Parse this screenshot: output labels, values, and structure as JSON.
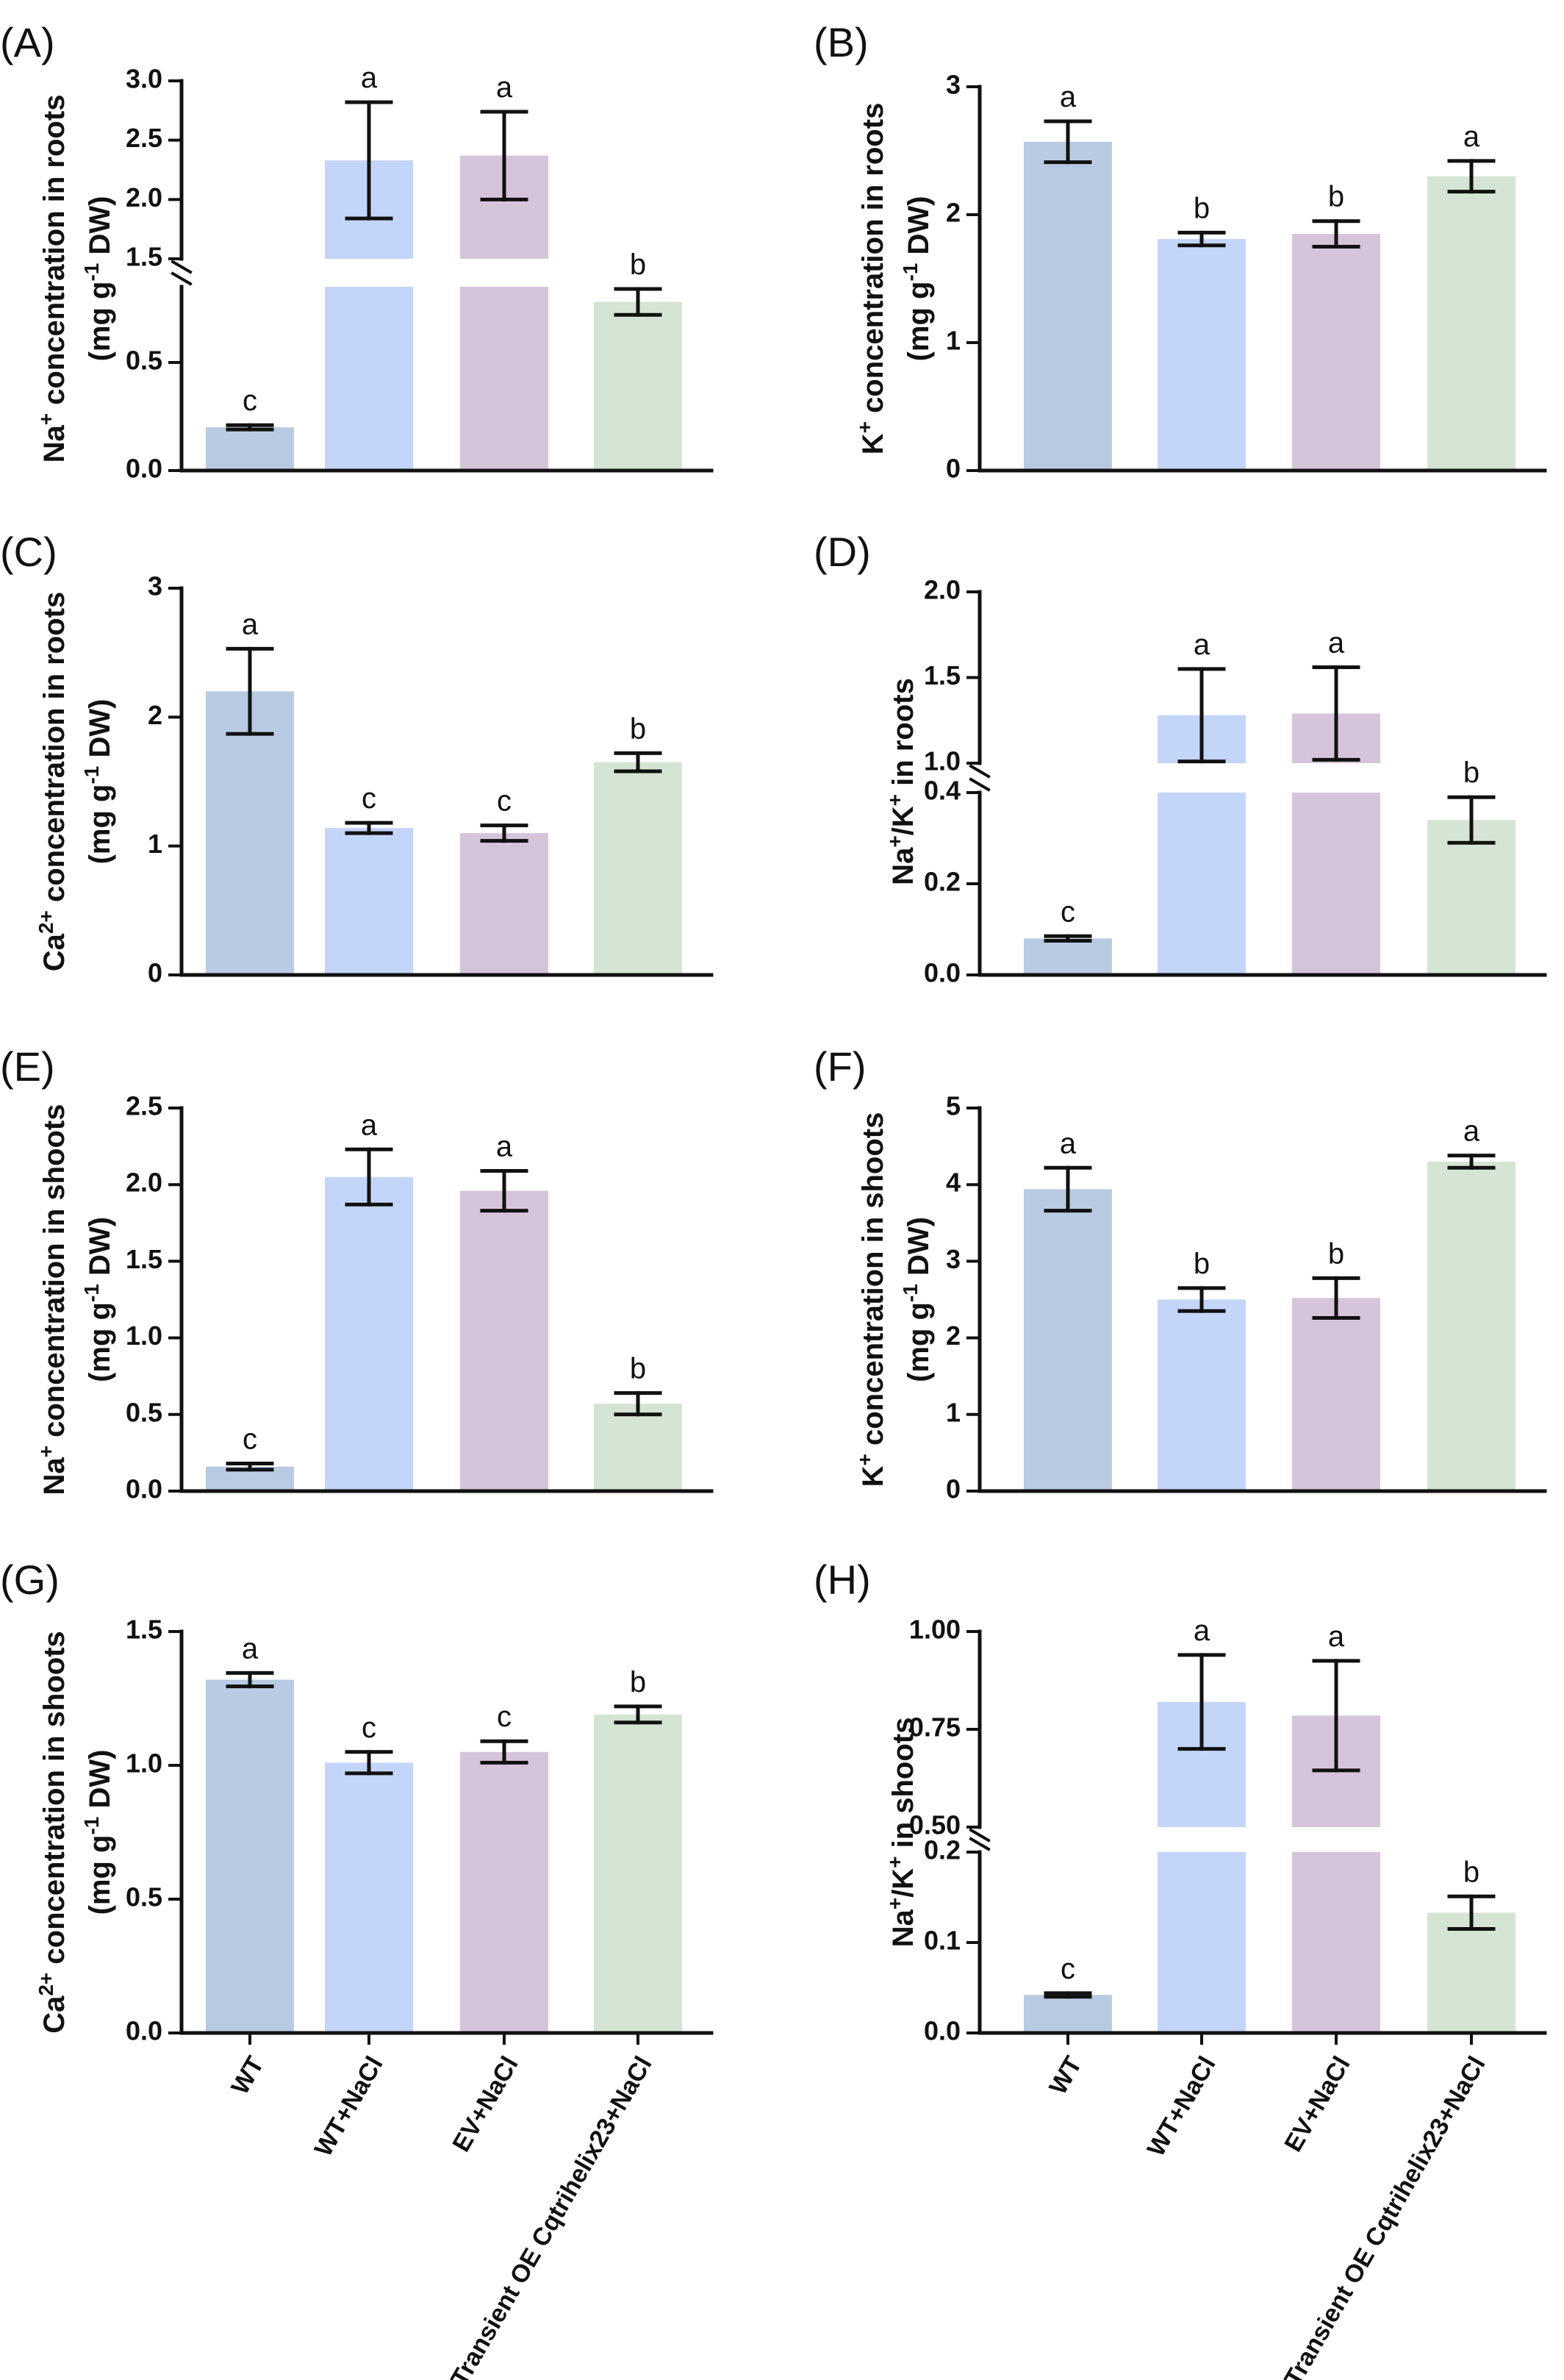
{
  "categories": [
    "WT",
    "WT+NaCl",
    "EV+NaCl",
    "Transient OE Cqtrihelix23+NaCl"
  ],
  "colors": [
    "#b9cbe3",
    "#c4d5fa",
    "#d6c5da",
    "#d4e5d3"
  ],
  "chart_data": [
    {
      "type": "bar",
      "panel": "(A)",
      "ylabel": "Na⁺ concentration in roots (mg g⁻¹ DW)",
      "ylabel_lines": [
        {
          "parts": [
            {
              "t": "Na"
            },
            {
              "t": "+",
              "sup": true
            },
            {
              "t": " concentration in roots"
            }
          ]
        },
        {
          "parts": [
            {
              "t": "(mg g"
            },
            {
              "t": "-1",
              "sup": true
            },
            {
              "t": " DW)"
            }
          ]
        }
      ],
      "axis_break": {
        "low_max": 0.85,
        "high_min": 1.5
      },
      "ylim_low": [
        0,
        0.85
      ],
      "ylim_high": [
        1.5,
        3.0
      ],
      "yticks_low": [
        {
          "v": 0,
          "label": "0.0"
        },
        {
          "v": 0.5,
          "label": "0.5"
        }
      ],
      "yticks_high": [
        {
          "v": 1.5,
          "label": "1.5"
        },
        {
          "v": 2.0,
          "label": "2.0"
        },
        {
          "v": 2.5,
          "label": "2.5"
        },
        {
          "v": 3.0,
          "label": "3.0"
        }
      ],
      "values": [
        0.2,
        2.33,
        2.37,
        0.78
      ],
      "errors": [
        0.01,
        0.49,
        0.37,
        0.06
      ],
      "letters": [
        "c",
        "a",
        "a",
        "b"
      ]
    },
    {
      "type": "bar",
      "panel": "(B)",
      "ylabel": "K⁺ concentration in roots (mg g⁻¹ DW)",
      "ylabel_lines": [
        {
          "parts": [
            {
              "t": "K"
            },
            {
              "t": "+",
              "sup": true
            },
            {
              "t": " concentration in roots"
            }
          ]
        },
        {
          "parts": [
            {
              "t": "(mg g"
            },
            {
              "t": "-1",
              "sup": true
            },
            {
              "t": " DW)"
            }
          ]
        }
      ],
      "ylim": [
        0,
        3
      ],
      "yticks": [
        {
          "v": 0,
          "label": "0"
        },
        {
          "v": 1,
          "label": "1"
        },
        {
          "v": 2,
          "label": "2"
        },
        {
          "v": 3,
          "label": "3"
        }
      ],
      "values": [
        2.57,
        1.81,
        1.85,
        2.3
      ],
      "errors": [
        0.16,
        0.05,
        0.1,
        0.12
      ],
      "letters": [
        "a",
        "b",
        "b",
        "a"
      ]
    },
    {
      "type": "bar",
      "panel": "(C)",
      "ylabel": "Ca²⁺ concentration in roots (mg g⁻¹ DW)",
      "ylabel_lines": [
        {
          "parts": [
            {
              "t": "Ca"
            },
            {
              "t": "2+",
              "sup": true
            },
            {
              "t": " concentration in roots"
            }
          ]
        },
        {
          "parts": [
            {
              "t": "(mg g"
            },
            {
              "t": "-1",
              "sup": true
            },
            {
              "t": " DW)"
            }
          ]
        }
      ],
      "ylim": [
        0,
        3
      ],
      "yticks": [
        {
          "v": 0,
          "label": "0"
        },
        {
          "v": 1,
          "label": "1"
        },
        {
          "v": 2,
          "label": "2"
        },
        {
          "v": 3,
          "label": "3"
        }
      ],
      "values": [
        2.2,
        1.14,
        1.1,
        1.65
      ],
      "errors": [
        0.33,
        0.04,
        0.06,
        0.07
      ],
      "letters": [
        "a",
        "c",
        "c",
        "b"
      ]
    },
    {
      "type": "bar",
      "panel": "(D)",
      "ylabel": "Na⁺/K⁺ in roots",
      "ylabel_lines": [
        {
          "parts": [
            {
              "t": "Na"
            },
            {
              "t": "+",
              "sup": true
            },
            {
              "t": "/K"
            },
            {
              "t": "+",
              "sup": true
            },
            {
              "t": " in roots"
            }
          ]
        }
      ],
      "axis_break": {
        "low_max": 0.4,
        "high_min": 1.0
      },
      "ylim_low": [
        0,
        0.4
      ],
      "ylim_high": [
        1.0,
        2.0
      ],
      "yticks_low": [
        {
          "v": 0,
          "label": "0.0"
        },
        {
          "v": 0.2,
          "label": "0.2"
        },
        {
          "v": 0.4,
          "label": "0.4"
        }
      ],
      "yticks_high": [
        {
          "v": 1.0,
          "label": "1.0"
        },
        {
          "v": 1.5,
          "label": "1.5"
        },
        {
          "v": 2.0,
          "label": "2.0"
        }
      ],
      "values": [
        0.08,
        1.28,
        1.29,
        0.34
      ],
      "errors": [
        0.005,
        0.27,
        0.27,
        0.05
      ],
      "letters": [
        "c",
        "a",
        "a",
        "b"
      ]
    },
    {
      "type": "bar",
      "panel": "(E)",
      "ylabel": "Na⁺ concentration in shoots (mg g⁻¹ DW)",
      "ylabel_lines": [
        {
          "parts": [
            {
              "t": "Na"
            },
            {
              "t": "+",
              "sup": true
            },
            {
              "t": " concentration in shoots"
            }
          ]
        },
        {
          "parts": [
            {
              "t": "(mg g"
            },
            {
              "t": "-1",
              "sup": true
            },
            {
              "t": " DW)"
            }
          ]
        }
      ],
      "ylim": [
        0,
        2.5
      ],
      "yticks": [
        {
          "v": 0,
          "label": "0.0"
        },
        {
          "v": 0.5,
          "label": "0.5"
        },
        {
          "v": 1.0,
          "label": "1.0"
        },
        {
          "v": 1.5,
          "label": "1.5"
        },
        {
          "v": 2.0,
          "label": "2.0"
        },
        {
          "v": 2.5,
          "label": "2.5"
        }
      ],
      "values": [
        0.16,
        2.05,
        1.96,
        0.57
      ],
      "errors": [
        0.02,
        0.18,
        0.13,
        0.07
      ],
      "letters": [
        "c",
        "a",
        "a",
        "b"
      ]
    },
    {
      "type": "bar",
      "panel": "(F)",
      "ylabel": "K⁺ concentration in shoots (mg g⁻¹ DW)",
      "ylabel_lines": [
        {
          "parts": [
            {
              "t": "K"
            },
            {
              "t": "+",
              "sup": true
            },
            {
              "t": " concentration in shoots"
            }
          ]
        },
        {
          "parts": [
            {
              "t": "(mg g"
            },
            {
              "t": "-1",
              "sup": true
            },
            {
              "t": " DW)"
            }
          ]
        }
      ],
      "ylim": [
        0,
        5
      ],
      "yticks": [
        {
          "v": 0,
          "label": "0"
        },
        {
          "v": 1,
          "label": "1"
        },
        {
          "v": 2,
          "label": "2"
        },
        {
          "v": 3,
          "label": "3"
        },
        {
          "v": 4,
          "label": "4"
        },
        {
          "v": 5,
          "label": "5"
        }
      ],
      "values": [
        3.94,
        2.5,
        2.52,
        4.3
      ],
      "errors": [
        0.28,
        0.15,
        0.26,
        0.08
      ],
      "letters": [
        "a",
        "b",
        "b",
        "a"
      ]
    },
    {
      "type": "bar",
      "panel": "(G)",
      "ylabel": "Ca²⁺ concentration in shoots (mg g⁻¹ DW)",
      "ylabel_lines": [
        {
          "parts": [
            {
              "t": "Ca"
            },
            {
              "t": "2+",
              "sup": true
            },
            {
              "t": " concentration in shoots"
            }
          ]
        },
        {
          "parts": [
            {
              "t": "(mg g"
            },
            {
              "t": "-1",
              "sup": true
            },
            {
              "t": " DW)"
            }
          ]
        }
      ],
      "ylim": [
        0,
        1.5
      ],
      "yticks": [
        {
          "v": 0,
          "label": "0.0"
        },
        {
          "v": 0.5,
          "label": "0.5"
        },
        {
          "v": 1.0,
          "label": "1.0"
        },
        {
          "v": 1.5,
          "label": "1.5"
        }
      ],
      "values": [
        1.32,
        1.01,
        1.05,
        1.19
      ],
      "errors": [
        0.025,
        0.04,
        0.04,
        0.03
      ],
      "letters": [
        "a",
        "c",
        "c",
        "b"
      ],
      "show_xlabels": true
    },
    {
      "type": "bar",
      "panel": "(H)",
      "ylabel": "Na⁺/K⁺ in shoots",
      "ylabel_lines": [
        {
          "parts": [
            {
              "t": "Na"
            },
            {
              "t": "+",
              "sup": true
            },
            {
              "t": "/K"
            },
            {
              "t": "+",
              "sup": true
            },
            {
              "t": " in shoots"
            }
          ]
        }
      ],
      "axis_break": {
        "low_max": 0.2,
        "high_min": 0.5
      },
      "ylim_low": [
        0,
        0.2
      ],
      "ylim_high": [
        0.5,
        1.0
      ],
      "yticks_low": [
        {
          "v": 0,
          "label": "0.0"
        },
        {
          "v": 0.1,
          "label": "0.1"
        },
        {
          "v": 0.2,
          "label": "0.2"
        }
      ],
      "yticks_high": [
        {
          "v": 0.5,
          "label": "0.50"
        },
        {
          "v": 0.75,
          "label": "0.75"
        },
        {
          "v": 1.0,
          "label": "1.00"
        }
      ],
      "values": [
        0.042,
        0.82,
        0.785,
        0.133
      ],
      "errors": [
        0.002,
        0.12,
        0.14,
        0.018
      ],
      "letters": [
        "c",
        "a",
        "a",
        "b"
      ],
      "show_xlabels": true
    }
  ]
}
